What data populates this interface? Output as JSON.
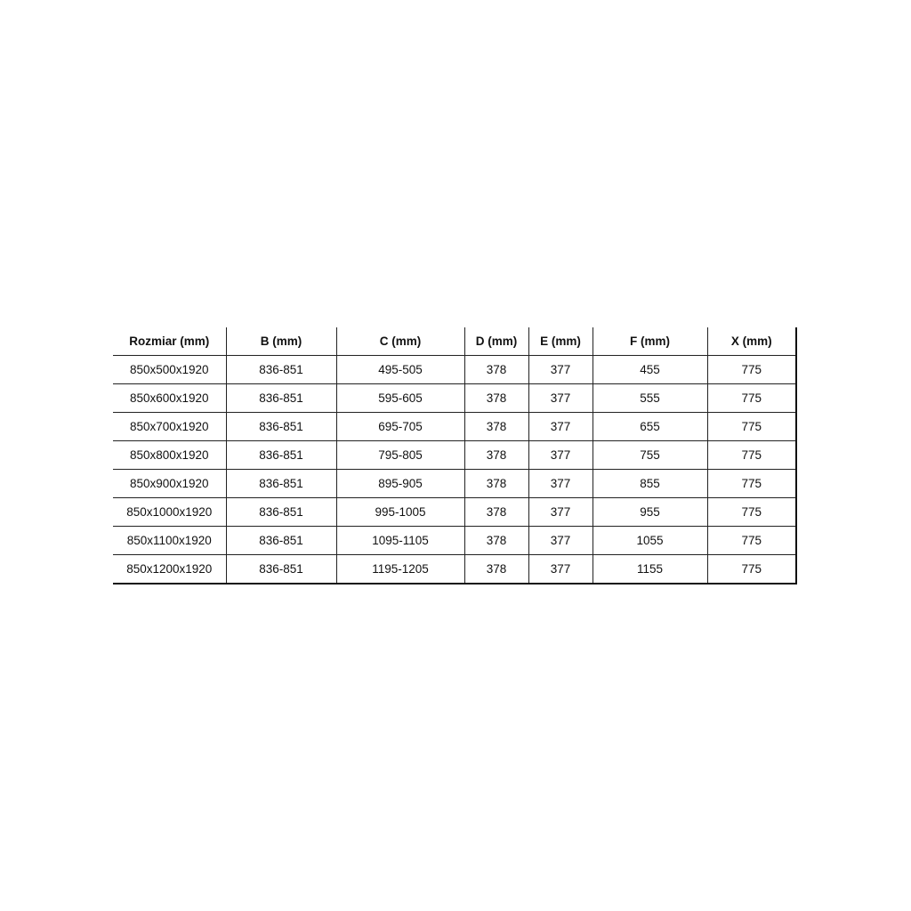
{
  "table": {
    "headers": [
      "Rozmiar (mm)",
      "B (mm)",
      "C (mm)",
      "D (mm)",
      "E (mm)",
      "F (mm)",
      "X (mm)"
    ],
    "rows": [
      [
        "850x500x1920",
        "836-851",
        "495-505",
        "378",
        "377",
        "455",
        "775"
      ],
      [
        "850x600x1920",
        "836-851",
        "595-605",
        "378",
        "377",
        "555",
        "775"
      ],
      [
        "850x700x1920",
        "836-851",
        "695-705",
        "378",
        "377",
        "655",
        "775"
      ],
      [
        "850x800x1920",
        "836-851",
        "795-805",
        "378",
        "377",
        "755",
        "775"
      ],
      [
        "850x900x1920",
        "836-851",
        "895-905",
        "378",
        "377",
        "855",
        "775"
      ],
      [
        "850x1000x1920",
        "836-851",
        "995-1005",
        "378",
        "377",
        "955",
        "775"
      ],
      [
        "850x1100x1920",
        "836-851",
        "1095-1105",
        "378",
        "377",
        "1055",
        "775"
      ],
      [
        "850x1200x1920",
        "836-851",
        "1195-1205",
        "378",
        "377",
        "1155",
        "775"
      ]
    ]
  }
}
